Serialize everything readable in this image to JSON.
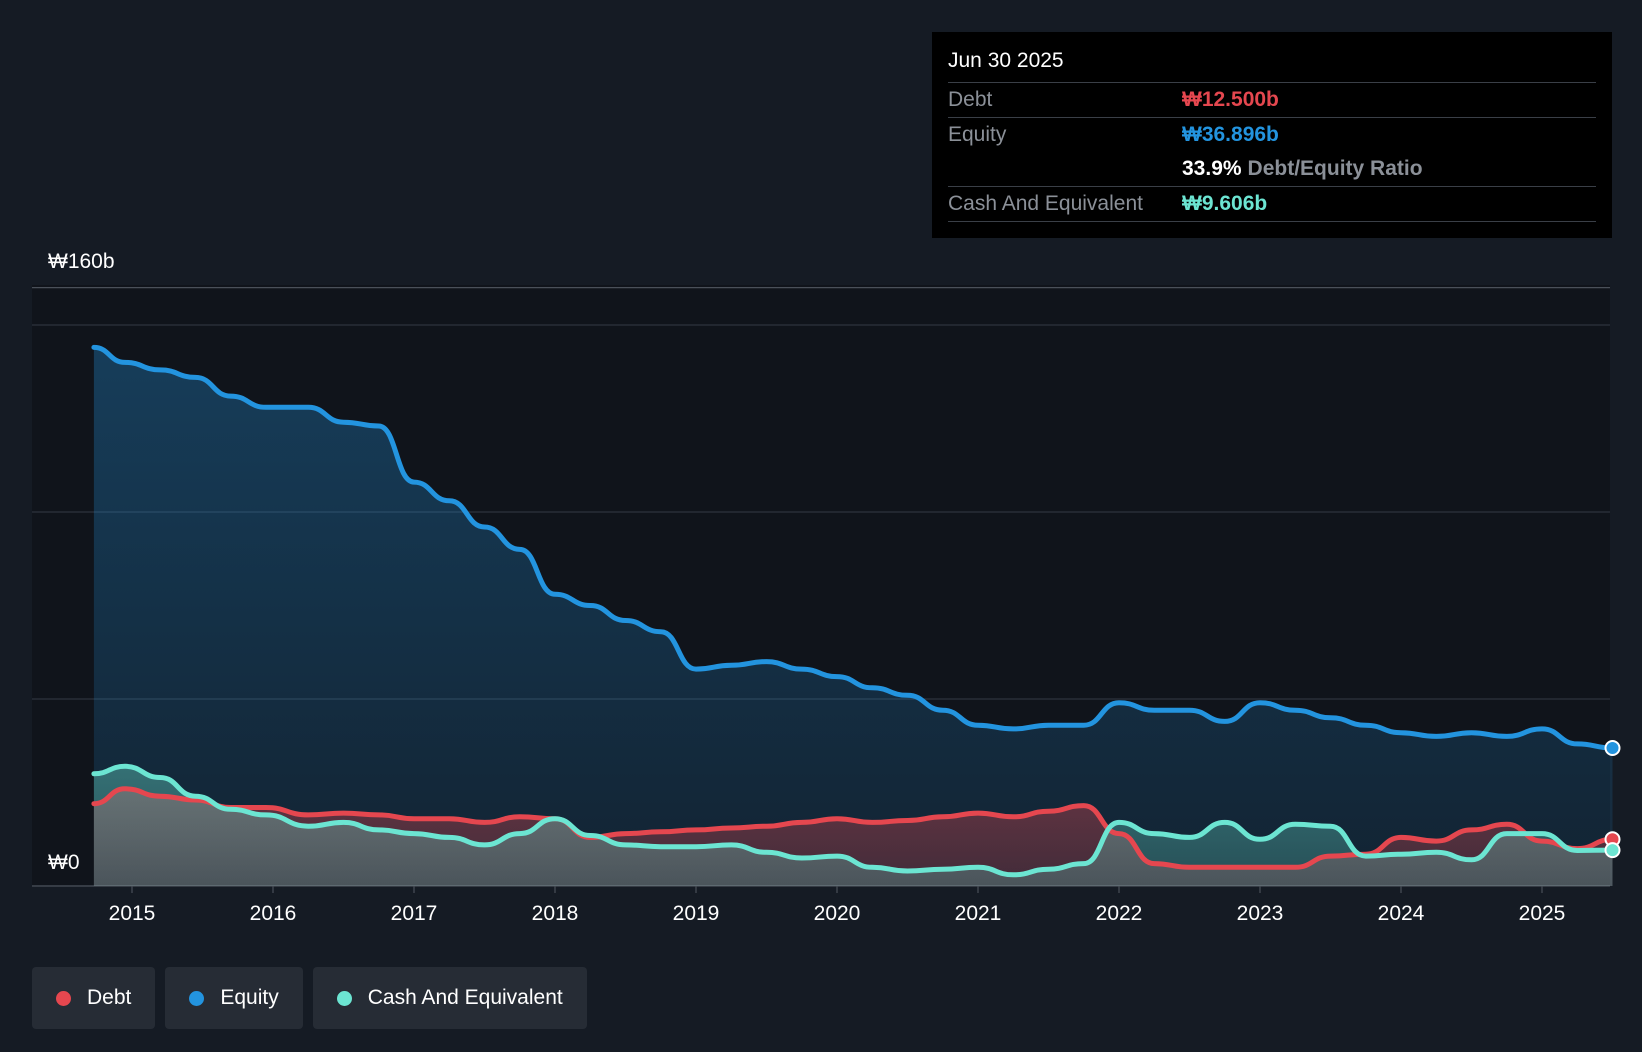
{
  "tooltip": {
    "date": "Jun 30 2025",
    "debt_label": "Debt",
    "debt_value": "₩12.500b",
    "equity_label": "Equity",
    "equity_value": "₩36.896b",
    "ratio_value": "33.9%",
    "ratio_label": "Debt/Equity Ratio",
    "cash_label": "Cash And Equivalent",
    "cash_value": "₩9.606b"
  },
  "legend": [
    {
      "label": "Debt",
      "color": "#e5474f"
    },
    {
      "label": "Equity",
      "color": "#2394df"
    },
    {
      "label": "Cash And Equivalent",
      "color": "#6ce5d2"
    }
  ],
  "chart_data": {
    "type": "area",
    "title": "",
    "xlabel": "",
    "ylabel": "",
    "y_top_label": "₩160b",
    "y_bottom_label": "₩0",
    "ylim": [
      0,
      160
    ],
    "xlim": [
      2014.73,
      2025.5
    ],
    "x_ticks": [
      "2015",
      "2016",
      "2017",
      "2018",
      "2019",
      "2020",
      "2021",
      "2022",
      "2023",
      "2024",
      "2025"
    ],
    "series": [
      {
        "name": "Equity",
        "color": "#2394df",
        "x": [
          2014.73,
          2014.95,
          2015.2,
          2015.45,
          2015.7,
          2015.95,
          2016.25,
          2016.5,
          2016.75,
          2017.0,
          2017.25,
          2017.5,
          2017.75,
          2018.0,
          2018.25,
          2018.5,
          2018.75,
          2019.0,
          2019.25,
          2019.5,
          2019.75,
          2020.0,
          2020.25,
          2020.5,
          2020.75,
          2021.0,
          2021.25,
          2021.5,
          2021.75,
          2022.0,
          2022.25,
          2022.5,
          2022.75,
          2023.0,
          2023.25,
          2023.5,
          2023.75,
          2024.0,
          2024.25,
          2024.5,
          2024.75,
          2025.0,
          2025.25,
          2025.5
        ],
        "values": [
          144,
          140,
          138,
          136,
          131,
          128,
          128,
          124,
          123,
          108,
          103,
          96,
          90,
          78,
          75,
          71,
          68,
          58,
          59,
          60,
          58,
          56,
          53,
          51,
          47,
          43,
          42,
          43,
          43,
          49,
          47,
          47,
          44,
          49,
          47,
          45,
          43,
          41,
          40,
          41,
          40,
          42,
          38,
          36.9
        ]
      },
      {
        "name": "Debt",
        "color": "#e5474f",
        "x": [
          2014.73,
          2014.95,
          2015.2,
          2015.45,
          2015.7,
          2015.95,
          2016.25,
          2016.5,
          2016.75,
          2017.0,
          2017.25,
          2017.5,
          2017.75,
          2018.0,
          2018.25,
          2018.5,
          2018.75,
          2019.0,
          2019.25,
          2019.5,
          2019.75,
          2020.0,
          2020.25,
          2020.5,
          2020.75,
          2021.0,
          2021.25,
          2021.5,
          2021.75,
          2022.0,
          2022.25,
          2022.5,
          2022.75,
          2023.0,
          2023.25,
          2023.5,
          2023.75,
          2024.0,
          2024.25,
          2024.5,
          2024.75,
          2025.0,
          2025.25,
          2025.5
        ],
        "values": [
          22,
          26,
          24,
          23,
          21,
          21,
          19,
          19.5,
          19,
          18,
          18,
          17,
          18.5,
          18,
          13,
          14,
          14.5,
          15,
          15.5,
          16,
          17,
          18,
          17,
          17.5,
          18.5,
          19.5,
          18.5,
          20,
          21.5,
          14,
          6,
          5,
          5,
          5,
          5,
          8,
          8.5,
          13,
          12,
          15,
          16.5,
          12,
          10,
          12.5
        ]
      },
      {
        "name": "Cash And Equivalent",
        "color": "#6ce5d2",
        "x": [
          2014.73,
          2014.95,
          2015.2,
          2015.45,
          2015.7,
          2015.95,
          2016.25,
          2016.5,
          2016.75,
          2017.0,
          2017.25,
          2017.5,
          2017.75,
          2018.0,
          2018.25,
          2018.5,
          2018.75,
          2019.0,
          2019.25,
          2019.5,
          2019.75,
          2020.0,
          2020.25,
          2020.5,
          2020.75,
          2021.0,
          2021.25,
          2021.5,
          2021.75,
          2022.0,
          2022.25,
          2022.5,
          2022.75,
          2023.0,
          2023.25,
          2023.5,
          2023.75,
          2024.0,
          2024.25,
          2024.5,
          2024.75,
          2025.0,
          2025.25,
          2025.5
        ],
        "values": [
          30,
          32,
          29,
          24,
          20.5,
          19,
          16,
          17,
          15,
          14,
          13,
          11,
          14,
          18,
          13.5,
          11,
          10.5,
          10.5,
          11,
          9,
          7.5,
          8,
          5,
          4,
          4.5,
          5,
          3,
          4.5,
          6,
          17,
          14,
          13,
          17,
          12.5,
          16.5,
          16,
          8,
          8.5,
          9,
          7,
          14,
          14,
          9.5,
          9.6
        ]
      }
    ]
  }
}
